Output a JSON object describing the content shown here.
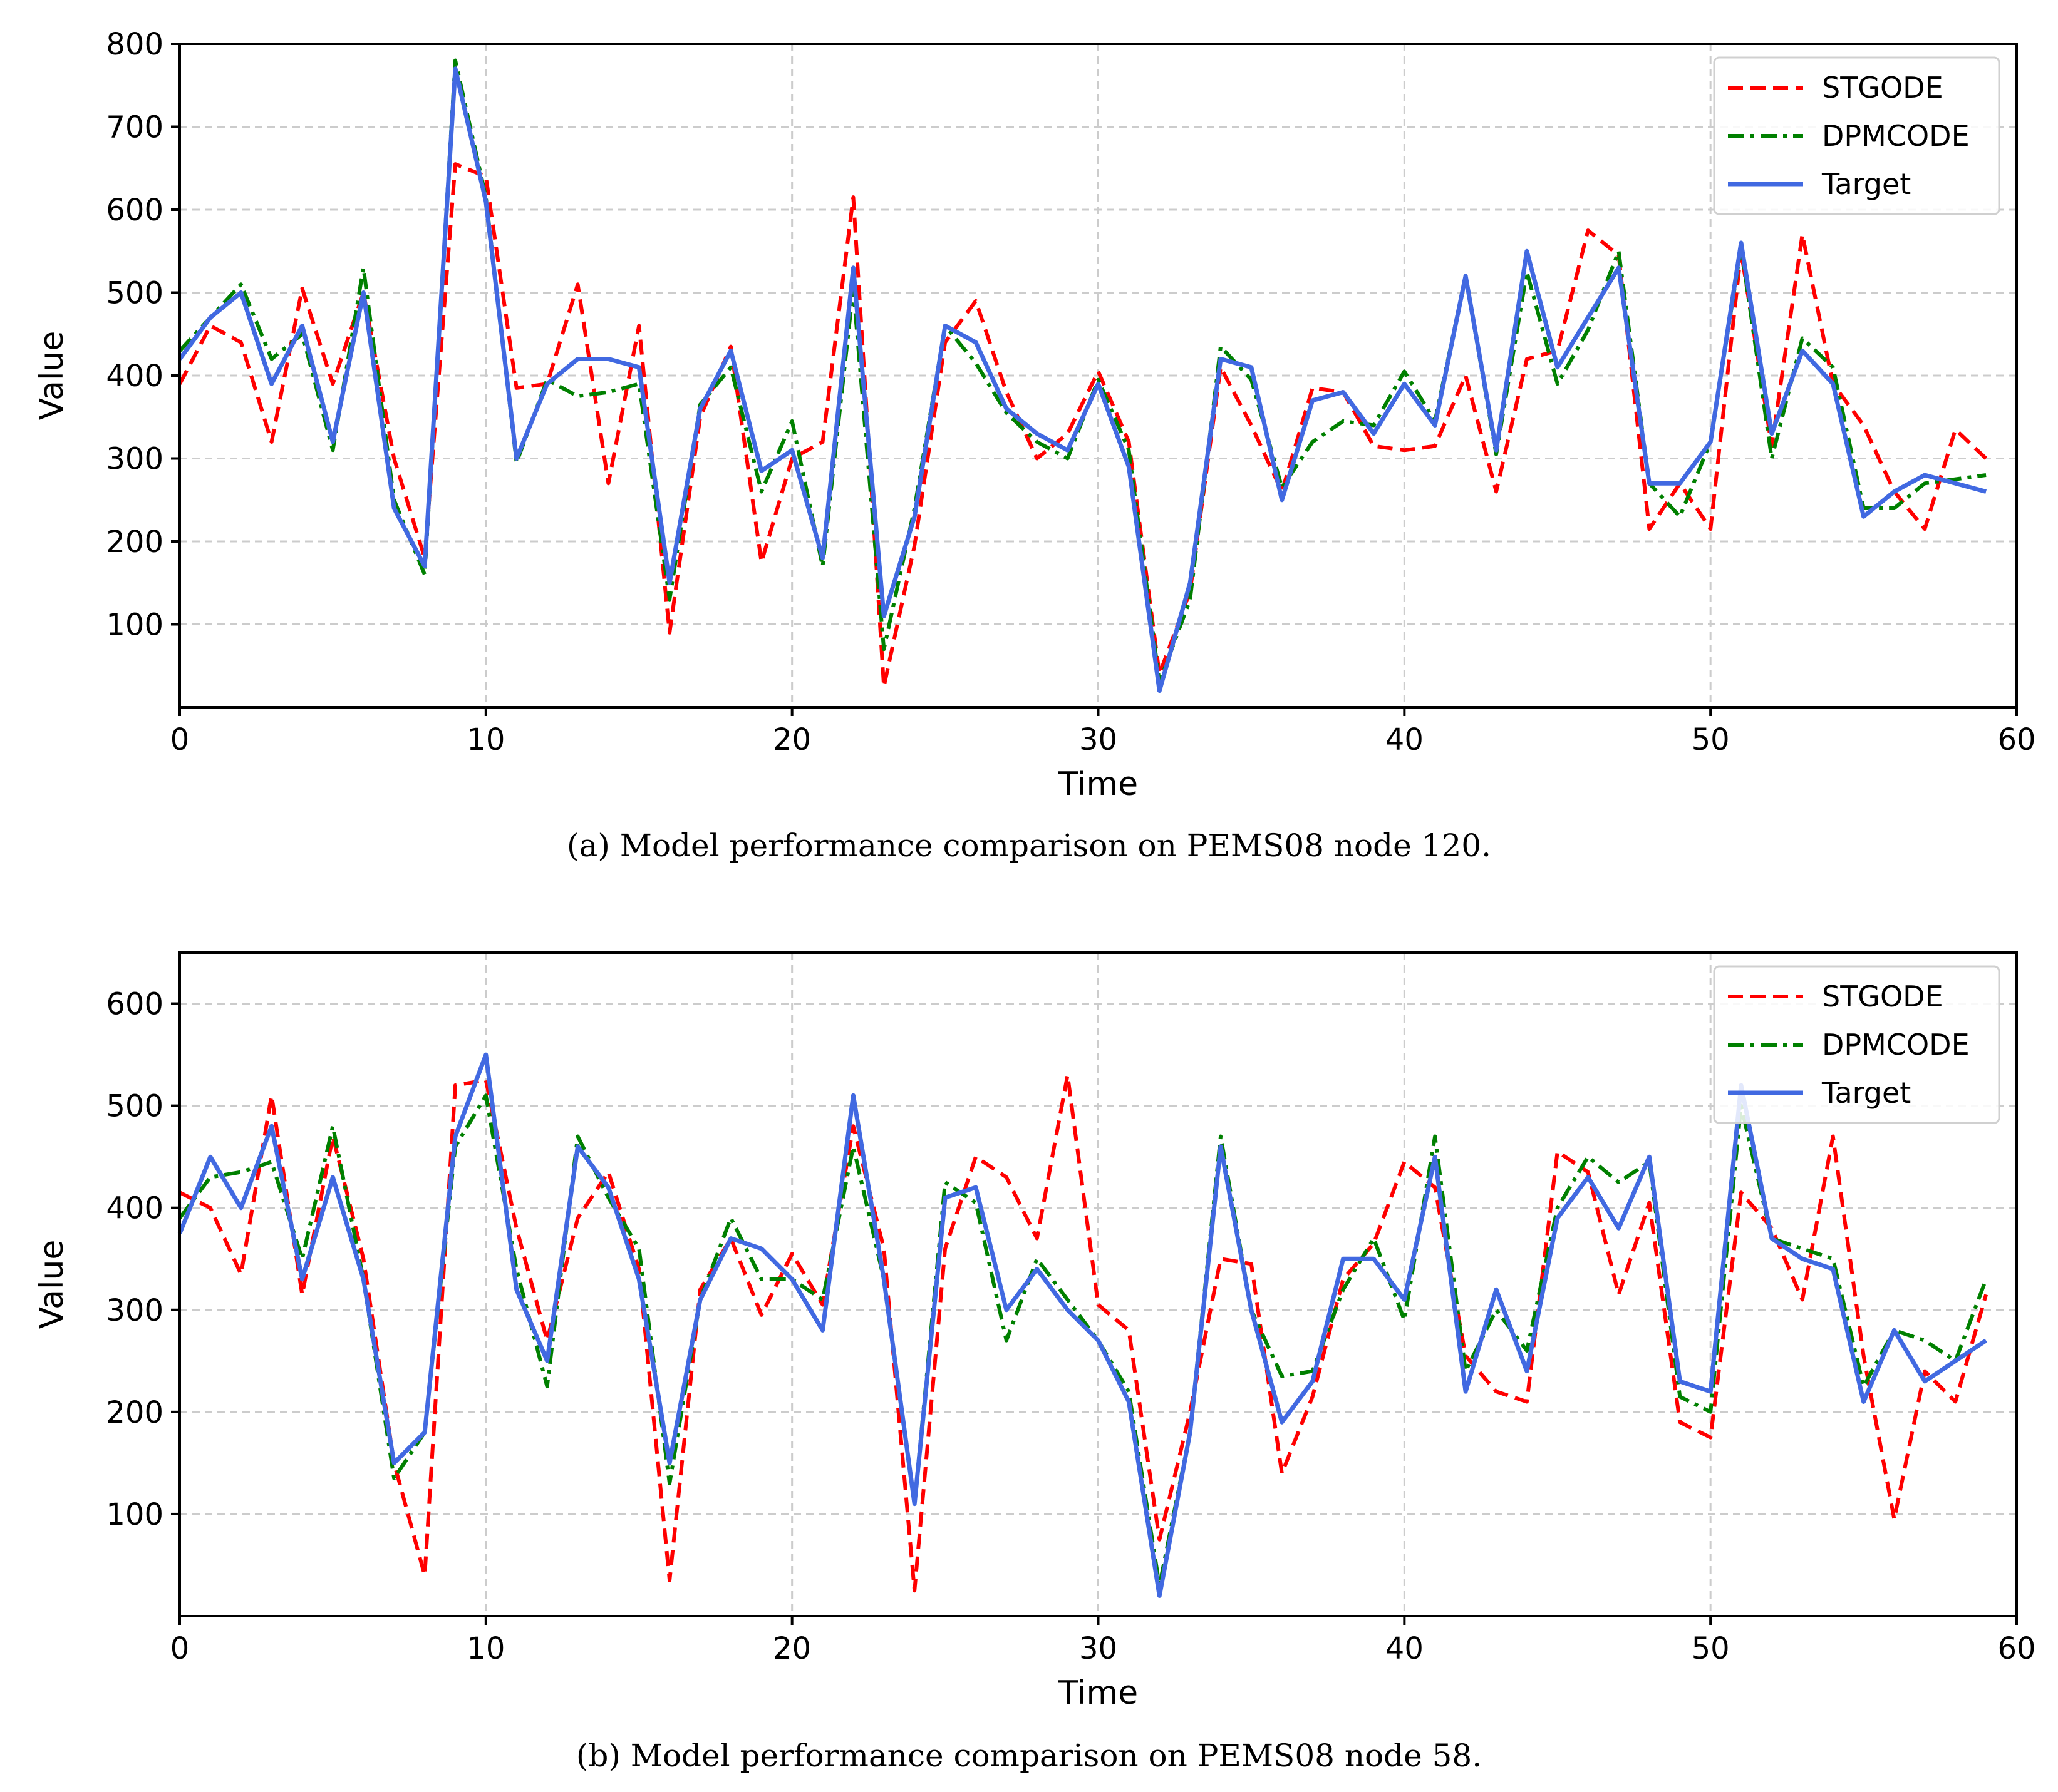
{
  "colors": {
    "stgode": "#ff0000",
    "dpmcode": "#008000",
    "target": "#4169e1",
    "grid": "#cccccc"
  },
  "chart_data": [
    {
      "type": "line",
      "caption": "(a) Model performance comparison on PEMS08 node 120.",
      "xlabel": "Time",
      "ylabel": "Value",
      "xlim": [
        0,
        60
      ],
      "ylim": [
        0,
        800
      ],
      "xticks": [
        0,
        10,
        20,
        30,
        40,
        50,
        60
      ],
      "yticks": [
        100,
        200,
        300,
        400,
        500,
        600,
        700,
        800
      ],
      "grid": true,
      "legend_position": "top-right",
      "x": [
        0,
        1,
        2,
        3,
        4,
        5,
        6,
        7,
        8,
        9,
        10,
        11,
        12,
        13,
        14,
        15,
        16,
        17,
        18,
        19,
        20,
        21,
        22,
        23,
        24,
        25,
        26,
        27,
        28,
        29,
        30,
        31,
        32,
        33,
        34,
        35,
        36,
        37,
        38,
        39,
        40,
        41,
        42,
        43,
        44,
        45,
        46,
        47,
        48,
        49,
        50,
        51,
        52,
        53,
        54,
        55,
        56,
        57,
        58,
        59
      ],
      "series": [
        {
          "name": "STGODE",
          "style": "dashed",
          "color": "#ff0000",
          "values": [
            390,
            460,
            440,
            320,
            505,
            390,
            500,
            300,
            180,
            655,
            640,
            385,
            390,
            510,
            270,
            460,
            90,
            350,
            435,
            175,
            300,
            320,
            615,
            25,
            195,
            440,
            490,
            380,
            300,
            330,
            405,
            320,
            40,
            140,
            410,
            340,
            260,
            385,
            380,
            315,
            310,
            315,
            400,
            260,
            420,
            430,
            575,
            545,
            215,
            270,
            215,
            550,
            315,
            570,
            390,
            340,
            260,
            215,
            335,
            300
          ]
        },
        {
          "name": "DPMCODE",
          "style": "dashdot",
          "color": "#008000",
          "values": [
            430,
            470,
            510,
            420,
            450,
            310,
            530,
            250,
            160,
            780,
            615,
            295,
            395,
            375,
            380,
            390,
            130,
            365,
            410,
            260,
            345,
            170,
            505,
            70,
            240,
            460,
            415,
            355,
            320,
            300,
            395,
            310,
            30,
            130,
            435,
            395,
            265,
            320,
            345,
            340,
            405,
            345,
            520,
            305,
            525,
            390,
            455,
            550,
            270,
            230,
            320,
            555,
            300,
            445,
            410,
            240,
            240,
            270,
            275,
            280
          ]
        },
        {
          "name": "Target",
          "style": "solid",
          "color": "#4169e1",
          "values": [
            420,
            470,
            500,
            390,
            460,
            320,
            500,
            240,
            170,
            770,
            610,
            300,
            390,
            420,
            420,
            410,
            150,
            360,
            430,
            285,
            310,
            180,
            530,
            110,
            230,
            460,
            440,
            360,
            330,
            310,
            390,
            290,
            20,
            150,
            420,
            410,
            250,
            370,
            380,
            330,
            390,
            340,
            520,
            310,
            550,
            410,
            470,
            530,
            270,
            270,
            320,
            560,
            330,
            430,
            390,
            230,
            260,
            280,
            270,
            260
          ]
        }
      ]
    },
    {
      "type": "line",
      "caption": "(b) Model performance comparison on PEMS08 node 58.",
      "xlabel": "Time",
      "ylabel": "Value",
      "xlim": [
        0,
        60
      ],
      "ylim": [
        0,
        650
      ],
      "xticks": [
        0,
        10,
        20,
        30,
        40,
        50,
        60
      ],
      "yticks": [
        100,
        200,
        300,
        400,
        500,
        600
      ],
      "grid": true,
      "legend_position": "top-right",
      "x": [
        0,
        1,
        2,
        3,
        4,
        5,
        6,
        7,
        8,
        9,
        10,
        11,
        12,
        13,
        14,
        15,
        16,
        17,
        18,
        19,
        20,
        21,
        22,
        23,
        24,
        25,
        26,
        27,
        28,
        29,
        30,
        31,
        32,
        33,
        34,
        35,
        36,
        37,
        38,
        39,
        40,
        41,
        42,
        43,
        44,
        45,
        46,
        47,
        48,
        49,
        50,
        51,
        52,
        53,
        54,
        55,
        56,
        57,
        58,
        59
      ],
      "series": [
        {
          "name": "STGODE",
          "style": "dashed",
          "color": "#ff0000",
          "values": [
            415,
            400,
            335,
            510,
            315,
            470,
            350,
            150,
            40,
            520,
            525,
            380,
            270,
            390,
            435,
            340,
            35,
            320,
            370,
            295,
            355,
            305,
            480,
            360,
            25,
            360,
            450,
            430,
            370,
            530,
            305,
            280,
            75,
            200,
            350,
            345,
            140,
            215,
            330,
            365,
            445,
            420,
            255,
            220,
            210,
            455,
            435,
            315,
            405,
            190,
            175,
            415,
            380,
            310,
            470,
            255,
            95,
            240,
            210,
            315
          ]
        },
        {
          "name": "DPMCODE",
          "style": "dashdot",
          "color": "#008000",
          "values": [
            390,
            430,
            435,
            445,
            350,
            480,
            330,
            135,
            180,
            460,
            510,
            340,
            225,
            470,
            410,
            360,
            130,
            310,
            390,
            330,
            330,
            310,
            460,
            330,
            110,
            425,
            405,
            270,
            350,
            310,
            270,
            220,
            30,
            180,
            470,
            300,
            235,
            240,
            320,
            370,
            290,
            470,
            240,
            300,
            260,
            400,
            450,
            425,
            445,
            215,
            200,
            500,
            370,
            360,
            350,
            225,
            280,
            270,
            250,
            330
          ]
        },
        {
          "name": "Target",
          "style": "solid",
          "color": "#4169e1",
          "values": [
            375,
            450,
            400,
            480,
            330,
            430,
            330,
            150,
            180,
            470,
            550,
            320,
            250,
            460,
            420,
            330,
            150,
            310,
            370,
            360,
            330,
            280,
            510,
            330,
            110,
            410,
            420,
            300,
            340,
            300,
            270,
            210,
            20,
            180,
            460,
            300,
            190,
            230,
            350,
            350,
            310,
            450,
            220,
            320,
            240,
            390,
            430,
            380,
            450,
            230,
            220,
            520,
            370,
            350,
            340,
            210,
            280,
            230,
            250,
            270
          ]
        }
      ]
    }
  ]
}
